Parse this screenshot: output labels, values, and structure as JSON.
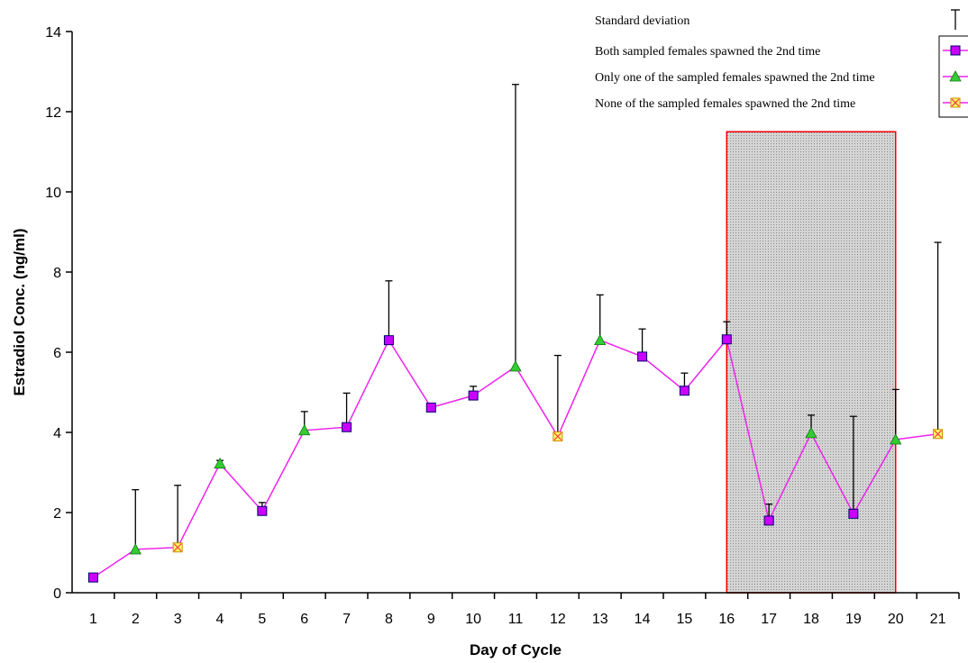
{
  "chart_data": {
    "type": "line",
    "xlabel": "Day of Cycle",
    "ylabel": "Estradiol Conc. (ng/ml)",
    "ylim": [
      0,
      14
    ],
    "yticks": [
      0,
      2,
      4,
      6,
      8,
      10,
      12,
      14
    ],
    "categories": [
      "1",
      "2",
      "3",
      "4",
      "5",
      "6",
      "7",
      "8",
      "9",
      "10",
      "11",
      "12",
      "13",
      "14",
      "15",
      "16",
      "17",
      "18",
      "19",
      "20",
      "21"
    ],
    "values": [
      0.38,
      1.08,
      1.13,
      3.22,
      2.04,
      4.05,
      4.13,
      6.3,
      4.62,
      4.92,
      5.64,
      3.9,
      6.3,
      5.89,
      5.04,
      6.32,
      1.8,
      3.98,
      1.97,
      3.82,
      3.96
    ],
    "error_upper": [
      null,
      2.57,
      2.68,
      3.3,
      2.25,
      4.52,
      4.98,
      7.78,
      null,
      5.15,
      12.68,
      5.92,
      7.43,
      6.58,
      5.48,
      6.76,
      2.21,
      4.43,
      4.4,
      5.07,
      8.74
    ],
    "marker_groups": [
      "both",
      "only_one",
      "none",
      "only_one",
      "both",
      "only_one",
      "both",
      "both",
      "both",
      "both",
      "only_one",
      "none",
      "only_one",
      "both",
      "both",
      "both",
      "both",
      "only_one",
      "both",
      "only_one",
      "none"
    ],
    "shaded_region": {
      "from_day": 16,
      "to_day": 20,
      "ymax": 11.5
    },
    "line_color": "#ee22ee",
    "colors": {
      "both_marker": "#cc00ff",
      "only_one_marker": "#33cc33",
      "none_marker": "#ffff66",
      "none_cross": "#ff4444",
      "shade_fill": "#c8c8c8",
      "shade_border": "#ff0000"
    },
    "legend": {
      "position": "top-right",
      "entries": [
        {
          "key": "sd",
          "label": "Standard deviation"
        },
        {
          "key": "both",
          "label": "Both sampled females spawned the 2nd time"
        },
        {
          "key": "only_one",
          "label": "Only one of the sampled females spawned the 2nd time"
        },
        {
          "key": "none",
          "label": "None of the sampled females spawned the 2nd time"
        }
      ]
    }
  }
}
